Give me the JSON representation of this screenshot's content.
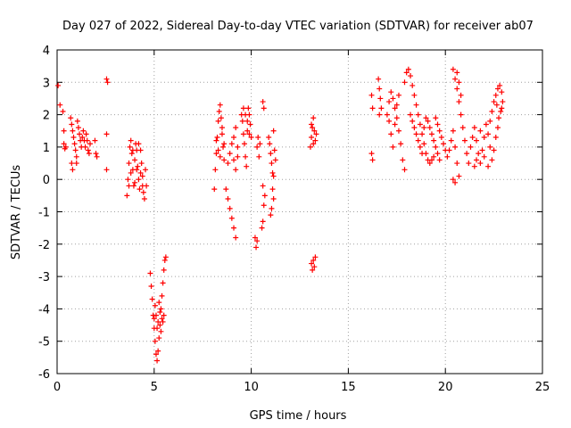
{
  "chart_data": {
    "type": "scatter",
    "title": "Day 027 of 2022, Sidereal Day-to-day VTEC variation (SDTVAR) for receiver ab07",
    "xlabel": "GPS time / hours",
    "ylabel": "SDTVAR / TECUs",
    "xlim": [
      0,
      25
    ],
    "ylim": [
      -6,
      4
    ],
    "xticks": [
      0,
      5,
      10,
      15,
      20,
      25
    ],
    "yticks": [
      -6,
      -5,
      -4,
      -3,
      -2,
      -1,
      0,
      1,
      2,
      3,
      4
    ],
    "grid": true,
    "marker": "+",
    "color": "#ff0000",
    "series": [
      {
        "name": "ab07",
        "points": [
          [
            0.05,
            2.9
          ],
          [
            0.15,
            2.3
          ],
          [
            0.3,
            2.1
          ],
          [
            0.35,
            1.5
          ],
          [
            0.35,
            1.1
          ],
          [
            0.4,
            0.95
          ],
          [
            0.45,
            1.0
          ],
          [
            0.7,
            1.9
          ],
          [
            0.75,
            1.7
          ],
          [
            0.8,
            1.5
          ],
          [
            0.85,
            1.3
          ],
          [
            0.9,
            1.1
          ],
          [
            0.95,
            0.9
          ],
          [
            1.0,
            0.7
          ],
          [
            1.0,
            0.5
          ],
          [
            0.8,
            0.3
          ],
          [
            0.75,
            0.5
          ],
          [
            1.05,
            1.8
          ],
          [
            1.1,
            1.6
          ],
          [
            1.15,
            1.4
          ],
          [
            1.2,
            1.2
          ],
          [
            1.25,
            1.0
          ],
          [
            1.3,
            1.3
          ],
          [
            1.35,
            1.5
          ],
          [
            1.4,
            1.2
          ],
          [
            1.45,
            1.0
          ],
          [
            1.5,
            1.4
          ],
          [
            1.55,
            1.2
          ],
          [
            1.6,
            0.9
          ],
          [
            1.65,
            0.8
          ],
          [
            1.7,
            1.1
          ],
          [
            1.95,
            1.2
          ],
          [
            2.0,
            0.8
          ],
          [
            2.05,
            0.7
          ],
          [
            2.55,
            3.1
          ],
          [
            2.6,
            3.0
          ],
          [
            2.55,
            1.4
          ],
          [
            2.55,
            0.3
          ],
          [
            3.6,
            -0.5
          ],
          [
            3.65,
            0.0
          ],
          [
            3.7,
            0.5
          ],
          [
            3.75,
            1.0
          ],
          [
            3.8,
            1.2
          ],
          [
            3.85,
            0.8
          ],
          [
            3.9,
            0.3
          ],
          [
            3.95,
            -0.2
          ],
          [
            4.0,
            0.6
          ],
          [
            4.05,
            1.1
          ],
          [
            4.1,
            0.9
          ],
          [
            4.15,
            0.4
          ],
          [
            4.2,
            0.0
          ],
          [
            4.25,
            -0.3
          ],
          [
            4.3,
            0.9
          ],
          [
            4.35,
            0.5
          ],
          [
            4.4,
            0.1
          ],
          [
            4.45,
            -0.4
          ],
          [
            4.5,
            -0.6
          ],
          [
            4.55,
            0.3
          ],
          [
            4.6,
            -0.2
          ],
          [
            3.7,
            -0.2
          ],
          [
            3.8,
            0.2
          ],
          [
            3.9,
            0.9
          ],
          [
            4.0,
            -0.1
          ],
          [
            4.1,
            0.3
          ],
          [
            4.2,
            1.1
          ],
          [
            4.3,
            0.2
          ],
          [
            4.4,
            -0.2
          ],
          [
            4.8,
            -2.9
          ],
          [
            4.85,
            -3.3
          ],
          [
            4.9,
            -3.7
          ],
          [
            4.95,
            -4.2
          ],
          [
            5.0,
            -4.6
          ],
          [
            5.05,
            -5.0
          ],
          [
            5.1,
            -5.4
          ],
          [
            5.15,
            -5.6
          ],
          [
            5.2,
            -5.3
          ],
          [
            5.25,
            -4.9
          ],
          [
            5.3,
            -4.5
          ],
          [
            5.35,
            -4.0
          ],
          [
            5.4,
            -3.6
          ],
          [
            5.45,
            -3.2
          ],
          [
            5.5,
            -2.8
          ],
          [
            5.55,
            -2.5
          ],
          [
            5.6,
            -2.4
          ],
          [
            5.0,
            -4.3
          ],
          [
            5.1,
            -4.2
          ],
          [
            5.2,
            -4.4
          ],
          [
            5.3,
            -4.1
          ],
          [
            5.4,
            -4.3
          ],
          [
            5.5,
            -4.2
          ],
          [
            5.05,
            -3.9
          ],
          [
            5.15,
            -4.6
          ],
          [
            5.25,
            -3.8
          ],
          [
            5.35,
            -4.7
          ],
          [
            5.45,
            -4.4
          ],
          [
            8.1,
            -0.3
          ],
          [
            8.15,
            0.3
          ],
          [
            8.2,
            0.8
          ],
          [
            8.25,
            1.3
          ],
          [
            8.3,
            1.8
          ],
          [
            8.35,
            2.1
          ],
          [
            8.4,
            2.3
          ],
          [
            8.45,
            1.9
          ],
          [
            8.5,
            1.4
          ],
          [
            8.55,
            1.0
          ],
          [
            8.6,
            0.6
          ],
          [
            8.2,
            1.2
          ],
          [
            8.3,
            0.9
          ],
          [
            8.4,
            0.7
          ],
          [
            8.5,
            1.6
          ],
          [
            8.6,
            1.1
          ],
          [
            8.7,
            -0.3
          ],
          [
            8.8,
            -0.6
          ],
          [
            8.9,
            -0.9
          ],
          [
            9.0,
            -1.2
          ],
          [
            9.1,
            -1.5
          ],
          [
            9.2,
            -1.8
          ],
          [
            8.8,
            0.5
          ],
          [
            8.9,
            0.8
          ],
          [
            9.0,
            1.1
          ],
          [
            9.1,
            1.3
          ],
          [
            9.2,
            1.6
          ],
          [
            9.3,
            1.0
          ],
          [
            9.1,
            0.6
          ],
          [
            9.2,
            0.3
          ],
          [
            9.3,
            0.7
          ],
          [
            9.5,
            2.0
          ],
          [
            9.55,
            1.8
          ],
          [
            9.6,
            1.4
          ],
          [
            9.65,
            1.1
          ],
          [
            9.7,
            0.7
          ],
          [
            9.75,
            0.4
          ],
          [
            9.8,
            1.5
          ],
          [
            9.85,
            2.2
          ],
          [
            9.9,
            2.0
          ],
          [
            9.95,
            1.7
          ],
          [
            10.0,
            1.3
          ],
          [
            9.6,
            2.2
          ],
          [
            9.7,
            2.0
          ],
          [
            9.8,
            1.8
          ],
          [
            9.9,
            1.4
          ],
          [
            10.3,
            1.0
          ],
          [
            10.35,
            1.3
          ],
          [
            10.4,
            0.7
          ],
          [
            10.45,
            1.1
          ],
          [
            10.2,
            -1.8
          ],
          [
            10.25,
            -2.1
          ],
          [
            10.3,
            -1.9
          ],
          [
            10.6,
            2.4
          ],
          [
            10.65,
            2.2
          ],
          [
            10.55,
            -1.5
          ],
          [
            10.6,
            -1.3
          ],
          [
            10.65,
            -0.8
          ],
          [
            10.6,
            -0.2
          ],
          [
            10.7,
            -0.5
          ],
          [
            10.9,
            1.3
          ],
          [
            10.95,
            1.1
          ],
          [
            11.0,
            0.8
          ],
          [
            11.05,
            0.5
          ],
          [
            11.1,
            0.2
          ],
          [
            11.1,
            -0.3
          ],
          [
            11.15,
            -0.6
          ],
          [
            11.05,
            -0.9
          ],
          [
            11.0,
            -1.1
          ],
          [
            11.15,
            1.5
          ],
          [
            11.2,
            0.9
          ],
          [
            11.25,
            0.6
          ],
          [
            11.15,
            0.1
          ],
          [
            13.05,
            1.0
          ],
          [
            13.1,
            1.3
          ],
          [
            13.15,
            1.6
          ],
          [
            13.2,
            1.9
          ],
          [
            13.25,
            1.5
          ],
          [
            13.3,
            1.2
          ],
          [
            13.35,
            1.4
          ],
          [
            13.1,
            1.7
          ],
          [
            13.2,
            1.1
          ],
          [
            13.1,
            -2.6
          ],
          [
            13.15,
            -2.8
          ],
          [
            13.2,
            -2.5
          ],
          [
            13.25,
            -2.7
          ],
          [
            13.3,
            -2.4
          ],
          [
            16.2,
            2.6
          ],
          [
            16.25,
            2.2
          ],
          [
            16.2,
            0.8
          ],
          [
            16.25,
            0.6
          ],
          [
            16.55,
            3.1
          ],
          [
            16.6,
            2.8
          ],
          [
            16.65,
            2.5
          ],
          [
            16.7,
            2.2
          ],
          [
            16.6,
            2.0
          ],
          [
            17.0,
            2.0
          ],
          [
            17.1,
            2.4
          ],
          [
            17.2,
            2.7
          ],
          [
            17.3,
            2.5
          ],
          [
            17.4,
            2.2
          ],
          [
            17.5,
            1.9
          ],
          [
            17.6,
            1.5
          ],
          [
            17.7,
            1.1
          ],
          [
            17.8,
            0.6
          ],
          [
            17.9,
            0.3
          ],
          [
            17.1,
            1.8
          ],
          [
            17.2,
            1.4
          ],
          [
            17.3,
            1.0
          ],
          [
            17.4,
            1.7
          ],
          [
            17.5,
            2.3
          ],
          [
            17.6,
            2.6
          ],
          [
            17.9,
            3.0
          ],
          [
            18.0,
            3.3
          ],
          [
            18.1,
            3.4
          ],
          [
            18.2,
            3.2
          ],
          [
            18.3,
            2.9
          ],
          [
            18.4,
            2.6
          ],
          [
            18.5,
            2.3
          ],
          [
            18.6,
            2.0
          ],
          [
            18.7,
            1.7
          ],
          [
            18.8,
            1.4
          ],
          [
            18.9,
            1.1
          ],
          [
            19.0,
            0.8
          ],
          [
            19.1,
            0.6
          ],
          [
            19.2,
            0.5
          ],
          [
            19.3,
            0.6
          ],
          [
            19.4,
            0.7
          ],
          [
            18.2,
            2.0
          ],
          [
            18.3,
            1.8
          ],
          [
            18.4,
            1.6
          ],
          [
            18.5,
            1.4
          ],
          [
            18.6,
            1.2
          ],
          [
            18.7,
            1.0
          ],
          [
            18.8,
            0.8
          ],
          [
            18.9,
            1.6
          ],
          [
            19.0,
            1.9
          ],
          [
            19.1,
            1.8
          ],
          [
            19.2,
            1.6
          ],
          [
            19.3,
            1.4
          ],
          [
            19.4,
            1.2
          ],
          [
            19.5,
            1.0
          ],
          [
            19.6,
            0.8
          ],
          [
            19.7,
            0.6
          ],
          [
            19.5,
            1.9
          ],
          [
            19.6,
            1.7
          ],
          [
            19.7,
            1.5
          ],
          [
            19.8,
            1.3
          ],
          [
            19.9,
            1.1
          ],
          [
            20.0,
            0.9
          ],
          [
            20.1,
            0.7
          ],
          [
            20.2,
            0.9
          ],
          [
            20.3,
            1.2
          ],
          [
            20.4,
            1.5
          ],
          [
            20.5,
            1.0
          ],
          [
            20.6,
            0.5
          ],
          [
            20.7,
            0.1
          ],
          [
            20.4,
            0.0
          ],
          [
            20.5,
            -0.1
          ],
          [
            20.4,
            3.4
          ],
          [
            20.5,
            3.1
          ],
          [
            20.6,
            2.8
          ],
          [
            20.7,
            2.4
          ],
          [
            20.8,
            2.0
          ],
          [
            20.9,
            1.6
          ],
          [
            21.0,
            1.2
          ],
          [
            21.1,
            0.8
          ],
          [
            21.2,
            0.5
          ],
          [
            20.6,
            3.3
          ],
          [
            20.7,
            3.0
          ],
          [
            20.8,
            2.6
          ],
          [
            21.3,
            1.0
          ],
          [
            21.4,
            1.3
          ],
          [
            21.5,
            1.6
          ],
          [
            21.6,
            1.2
          ],
          [
            21.7,
            0.8
          ],
          [
            21.8,
            0.5
          ],
          [
            21.9,
            0.9
          ],
          [
            22.0,
            1.3
          ],
          [
            22.1,
            1.7
          ],
          [
            22.2,
            1.4
          ],
          [
            22.3,
            1.0
          ],
          [
            22.4,
            0.6
          ],
          [
            22.5,
            0.9
          ],
          [
            22.6,
            1.3
          ],
          [
            22.7,
            1.6
          ],
          [
            21.5,
            0.4
          ],
          [
            21.6,
            0.6
          ],
          [
            21.8,
            1.5
          ],
          [
            22.0,
            0.7
          ],
          [
            22.2,
            0.4
          ],
          [
            22.3,
            1.8
          ],
          [
            22.4,
            2.1
          ],
          [
            22.5,
            2.4
          ],
          [
            22.6,
            2.6
          ],
          [
            22.7,
            2.8
          ],
          [
            22.8,
            2.9
          ],
          [
            22.9,
            2.7
          ],
          [
            22.95,
            2.4
          ],
          [
            22.85,
            2.1
          ],
          [
            22.75,
            1.9
          ],
          [
            22.65,
            2.3
          ],
          [
            22.9,
            2.2
          ]
        ]
      }
    ]
  }
}
